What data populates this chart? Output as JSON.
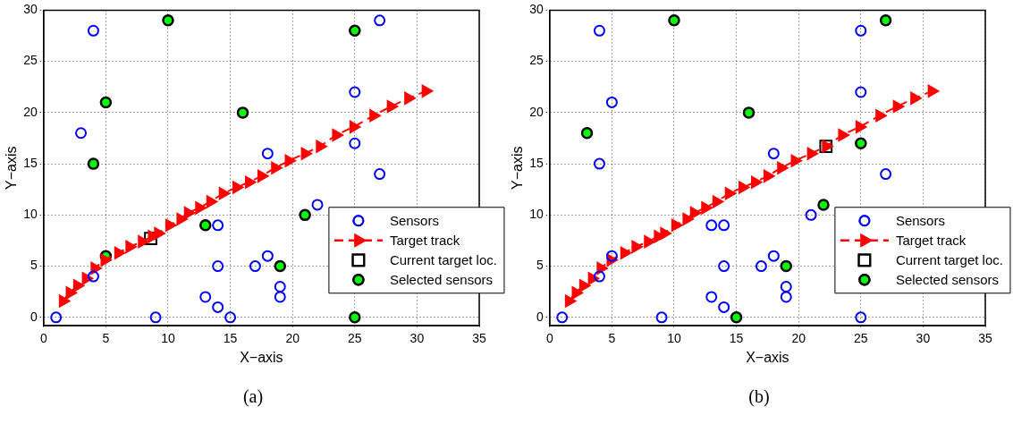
{
  "chart_data": [
    {
      "type": "scatter",
      "xlabel": "X−axis",
      "ylabel": "Y−axis",
      "xlim": [
        0,
        35
      ],
      "ylim": [
        -0.8,
        30
      ],
      "xticks": [
        0,
        5,
        10,
        15,
        20,
        25,
        30,
        35
      ],
      "yticks": [
        0,
        5,
        10,
        15,
        20,
        25,
        30
      ],
      "grid": true,
      "legend": "lower right",
      "annotations": [
        "(a)"
      ],
      "series": [
        {
          "name": "Sensors",
          "type": "scatter",
          "marker": "circle",
          "color": "#0000ff",
          "x": [
            4,
            27,
            3,
            25,
            25,
            27,
            18,
            22,
            14,
            4,
            14,
            17,
            18,
            19,
            19,
            13,
            14,
            15,
            9,
            1
          ],
          "values": [
            28,
            29,
            18,
            22,
            17,
            14,
            16,
            11,
            9,
            4,
            5,
            5,
            6,
            3,
            2,
            2,
            1,
            0,
            0,
            0
          ]
        },
        {
          "name": "Target track",
          "type": "line",
          "marker": "triangle",
          "line_style": "dashed",
          "color": "#ff0000",
          "x": [
            1.55,
            2.1,
            2.7,
            3.4,
            4.1,
            4.9,
            6.0,
            6.9,
            7.9,
            8.7,
            9.2,
            10.1,
            11.0,
            11.6,
            12.5,
            13.4,
            14.4,
            15.5,
            16.5,
            17.5,
            18.6,
            19.7,
            21.0,
            22.2,
            23.5,
            24.9,
            26.5,
            27.9,
            29.3,
            30.7
          ],
          "values": [
            1.6,
            2.4,
            3.1,
            3.8,
            4.8,
            5.6,
            6.3,
            6.9,
            7.4,
            7.9,
            8.2,
            9.0,
            9.6,
            10.2,
            10.7,
            11.3,
            12.1,
            12.7,
            13.2,
            13.8,
            14.6,
            15.3,
            16.0,
            16.7,
            17.8,
            18.6,
            19.7,
            20.6,
            21.4,
            22.1
          ]
        },
        {
          "name": "Current target loc.",
          "type": "scatter",
          "marker": "square",
          "color": "#000000",
          "x": [
            8.6
          ],
          "values": [
            7.7
          ]
        },
        {
          "name": "Selected sensors",
          "type": "scatter",
          "marker": "circle",
          "color": "#00ff00",
          "x": [
            10,
            25,
            5,
            16,
            4,
            21,
            13,
            5,
            19,
            25
          ],
          "values": [
            29,
            28,
            21,
            20,
            15,
            10,
            9,
            6,
            5,
            0
          ]
        }
      ]
    },
    {
      "type": "scatter",
      "xlabel": "X−axis",
      "ylabel": "Y−axis",
      "xlim": [
        0,
        35
      ],
      "ylim": [
        -0.8,
        30
      ],
      "xticks": [
        0,
        5,
        10,
        15,
        20,
        25,
        30,
        35
      ],
      "yticks": [
        0,
        5,
        10,
        15,
        20,
        25,
        30
      ],
      "grid": true,
      "legend": "lower right",
      "annotations": [
        "(b)"
      ],
      "series": [
        {
          "name": "Sensors",
          "type": "scatter",
          "marker": "circle",
          "color": "#0000ff",
          "x": [
            4,
            25,
            5,
            4,
            25,
            18,
            27,
            21,
            13,
            14,
            5,
            4,
            14,
            17,
            18,
            19,
            19,
            13,
            14,
            1,
            9,
            25
          ],
          "values": [
            28,
            28,
            21,
            15,
            22,
            16,
            14,
            10,
            9,
            9,
            6,
            4,
            5,
            5,
            6,
            3,
            2,
            2,
            1,
            0,
            0,
            0
          ]
        },
        {
          "name": "Target track",
          "type": "line",
          "marker": "triangle",
          "line_style": "dashed",
          "color": "#ff0000",
          "x": [
            1.55,
            2.1,
            2.7,
            3.4,
            4.1,
            4.9,
            6.0,
            6.9,
            7.9,
            8.7,
            9.2,
            10.1,
            11.0,
            11.6,
            12.5,
            13.4,
            14.4,
            15.5,
            16.5,
            17.5,
            18.6,
            19.7,
            21.0,
            22.2,
            23.5,
            24.9,
            26.5,
            27.9,
            29.3,
            30.7
          ],
          "values": [
            1.6,
            2.4,
            3.1,
            3.8,
            4.8,
            5.6,
            6.3,
            6.9,
            7.4,
            7.9,
            8.2,
            9.0,
            9.6,
            10.2,
            10.7,
            11.3,
            12.1,
            12.7,
            13.2,
            13.8,
            14.6,
            15.3,
            16.0,
            16.7,
            17.8,
            18.6,
            19.7,
            20.6,
            21.4,
            22.1
          ]
        },
        {
          "name": "Current target loc.",
          "type": "scatter",
          "marker": "square",
          "color": "#000000",
          "x": [
            22.2
          ],
          "values": [
            16.7
          ]
        },
        {
          "name": "Selected sensors",
          "type": "scatter",
          "marker": "circle",
          "color": "#00ff00",
          "x": [
            10,
            27,
            3,
            16,
            25,
            22,
            19,
            15
          ],
          "values": [
            29,
            29,
            18,
            20,
            17,
            11,
            5,
            0
          ]
        }
      ]
    }
  ]
}
